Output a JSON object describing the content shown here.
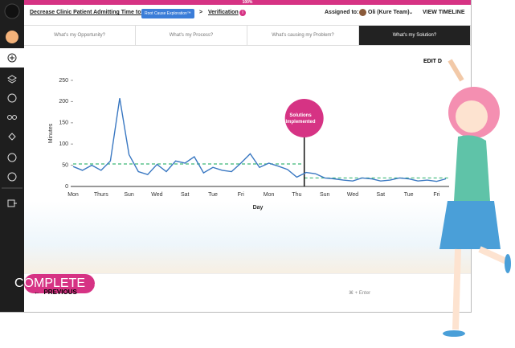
{
  "progress": {
    "label": "100%"
  },
  "header": {
    "project": "Decrease Clinic Patient Admitting Time to...",
    "phase_tag": "Root Cause Exploration™",
    "separator": ">",
    "step": "Verification",
    "info": "i",
    "assigned_label": "Assigned to:",
    "assignee": "Oli (Kure Team)",
    "timeline": "VIEW TIMELINE"
  },
  "tabs": [
    "What's my Opportunity?",
    "What's my Process?",
    "What's causing my Problem?",
    "What's my Solution?"
  ],
  "edit": "EDIT D",
  "chart_data": {
    "type": "line",
    "x_label": "Day",
    "y_label": "Minutes",
    "categories": [
      "Mon",
      null,
      null,
      "Thurs",
      null,
      null,
      "Sun",
      null,
      null,
      "Wed",
      null,
      null,
      "Sat",
      null,
      null,
      "Tue",
      null,
      null,
      "Fri",
      null,
      null,
      "Mon",
      null,
      null,
      "Thu",
      null,
      null,
      "Sun",
      null,
      null,
      "Wed",
      null,
      null,
      "Sat",
      null,
      null,
      "Tue",
      null,
      null,
      "Fri",
      null
    ],
    "series": [
      {
        "name": "Minutes",
        "color": "#3a78c2",
        "values": [
          47,
          38,
          50,
          38,
          60,
          208,
          75,
          35,
          28,
          52,
          35,
          60,
          55,
          70,
          32,
          45,
          38,
          35,
          55,
          77,
          45,
          55,
          48,
          40,
          22,
          33,
          30,
          20,
          18,
          15,
          13,
          20,
          18,
          13,
          15,
          20,
          18,
          13,
          15,
          12,
          18
        ]
      }
    ],
    "reference_lines": [
      {
        "value": 53,
        "color": "#3cb878"
      },
      {
        "value": 20,
        "color": "#3cb878"
      }
    ],
    "annotation": "Solutions Implemented",
    "ylim": [
      0,
      250
    ],
    "yticks": [
      0,
      50,
      100,
      150,
      200,
      250
    ]
  },
  "footer": {
    "previous": "PREVIOUS",
    "shortcut": "⌘ + Enter",
    "complete": "COMPLETE"
  }
}
